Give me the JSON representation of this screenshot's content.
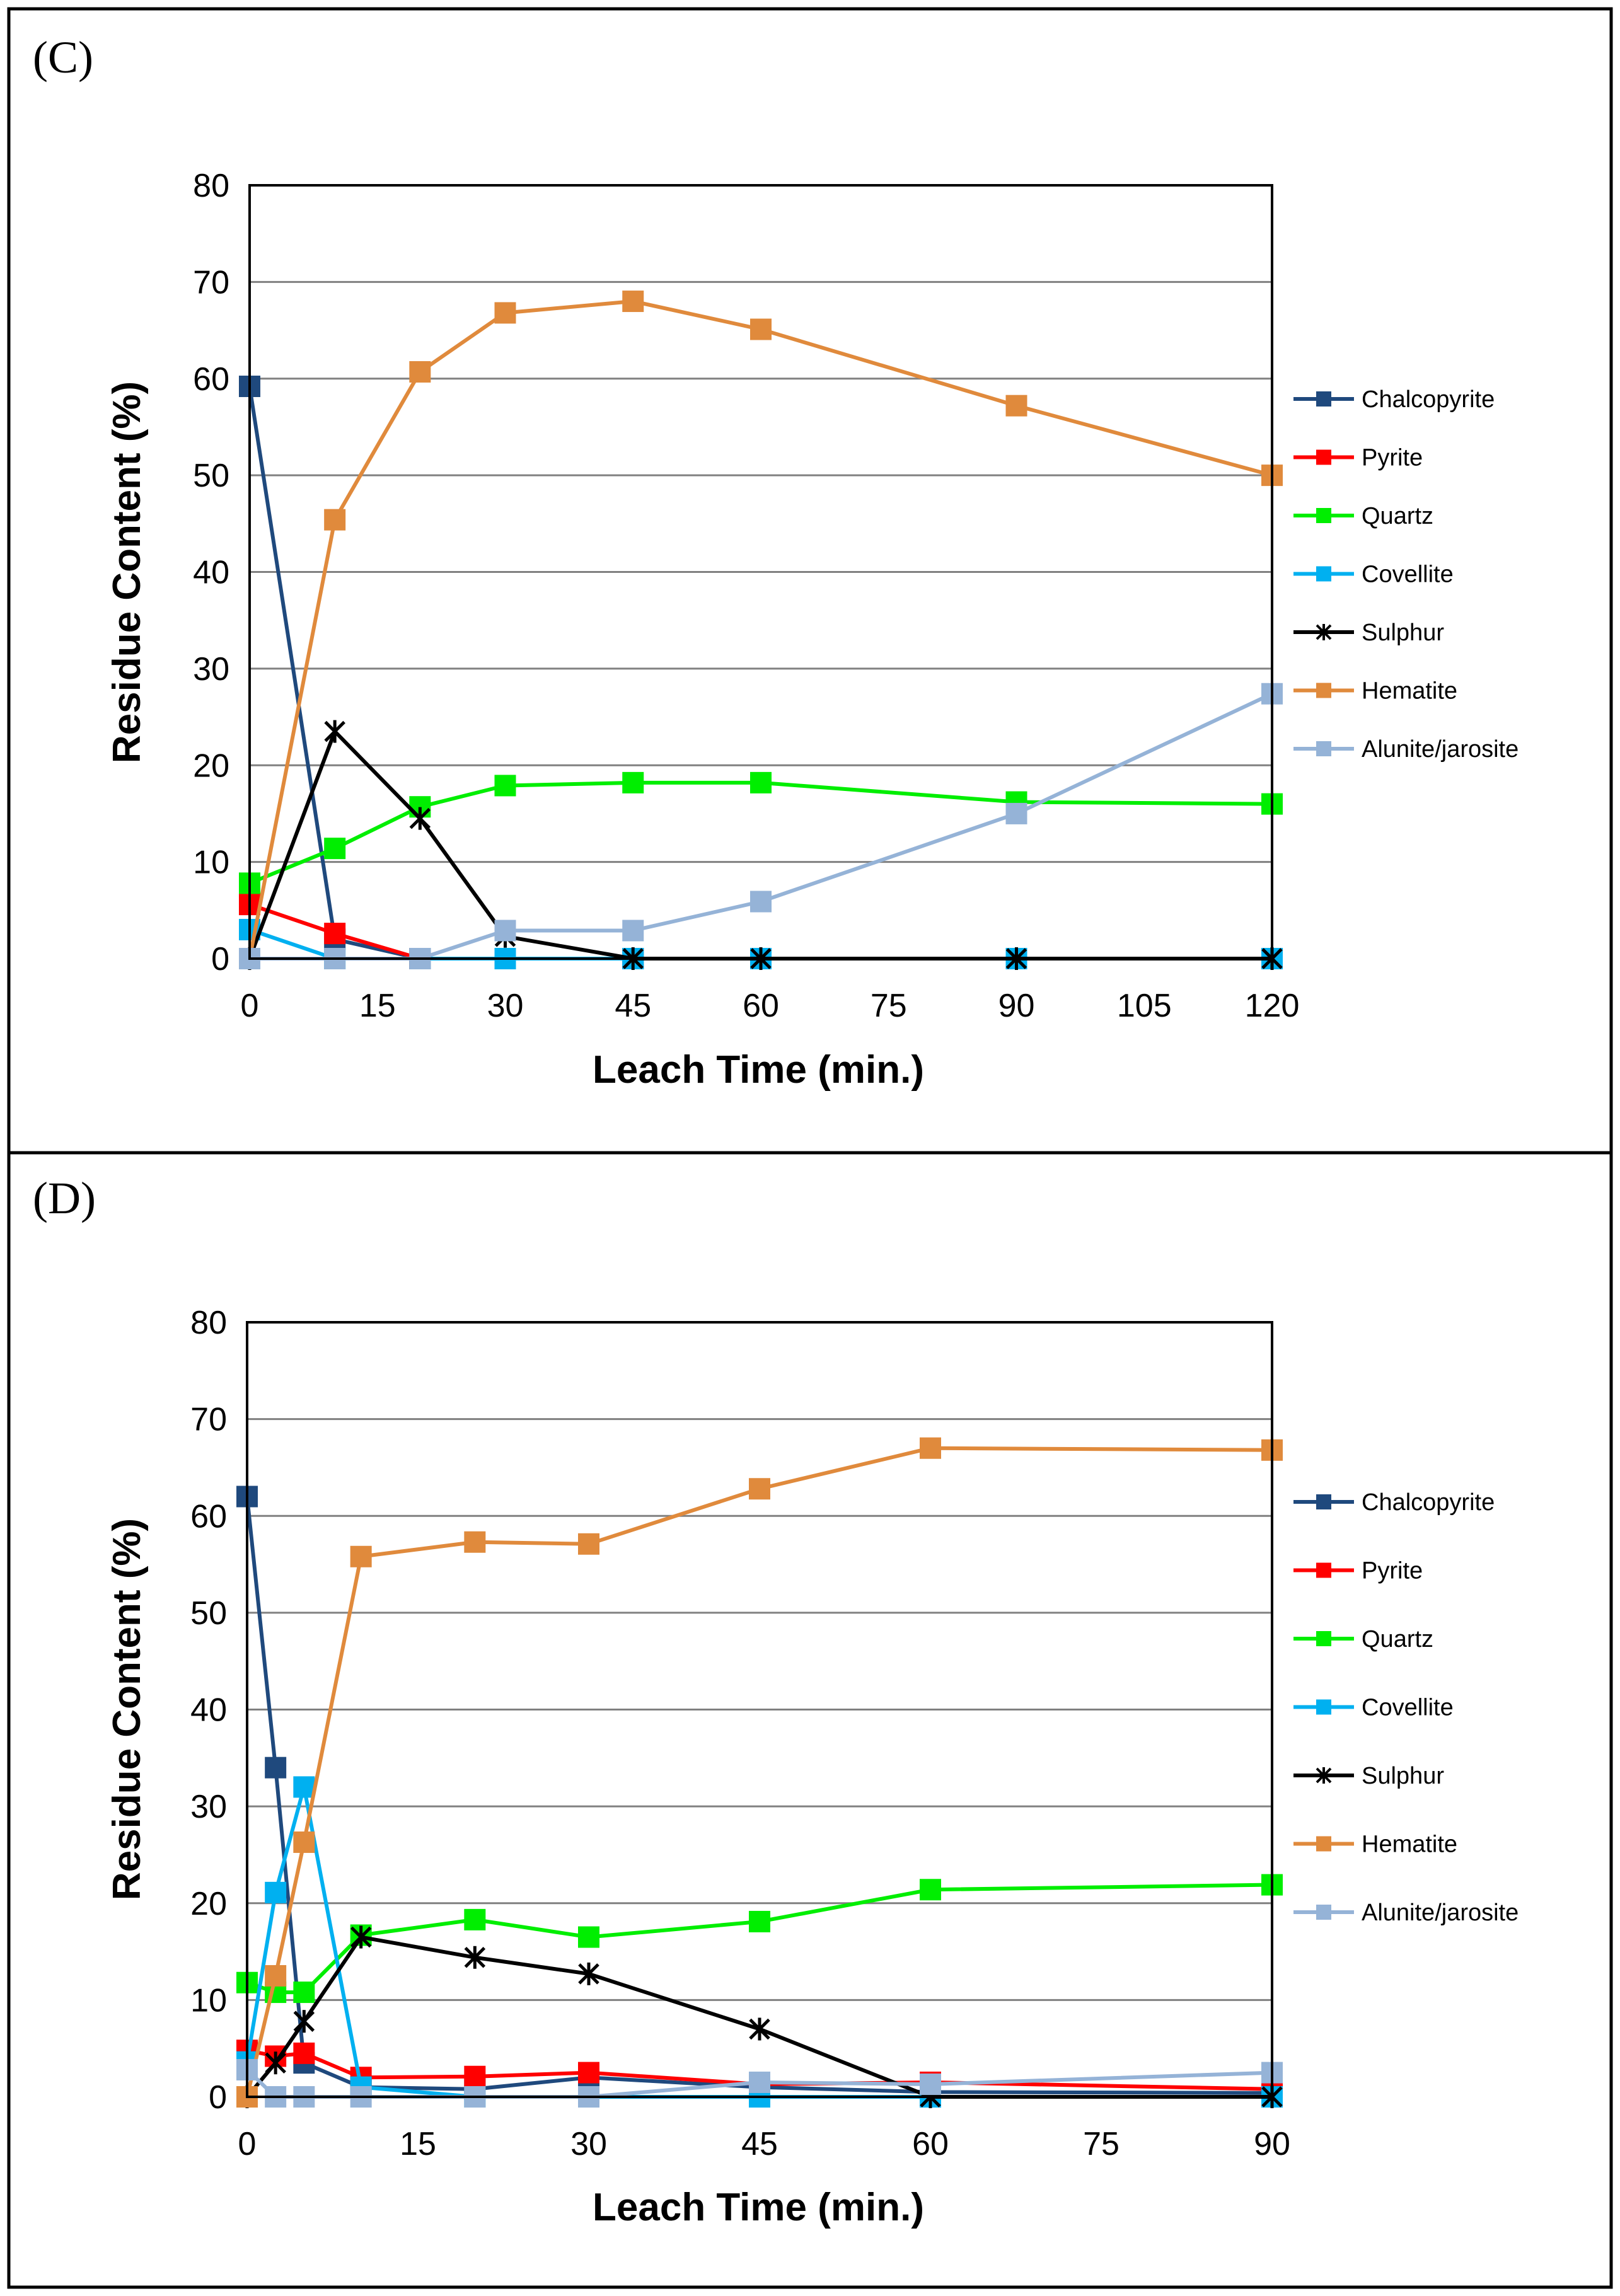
{
  "colors": {
    "Chalcopyrite": "#1f497d",
    "Pyrite": "#ff0000",
    "Quartz": "#00ee00",
    "Covellite": "#00b0f0",
    "Sulphur": "#000000",
    "Hematite": "#e08a3c",
    "Alunite/jarosite": "#95b3d7"
  },
  "chart_data": [
    {
      "panel_label": "(C)",
      "type": "line",
      "xlabel": "Leach Time (min.)",
      "ylabel": "Residue Content (%)",
      "xlim": [
        0,
        120
      ],
      "ylim": [
        0,
        80
      ],
      "x_ticks": [
        "0",
        "15",
        "30",
        "45",
        "60",
        "75",
        "90",
        "105",
        "120"
      ],
      "y_ticks": [
        "0",
        "10",
        "20",
        "30",
        "40",
        "50",
        "60",
        "70",
        "80"
      ],
      "grid": true,
      "legend": "right",
      "series": [
        {
          "name": "Chalcopyrite",
          "marker": "square",
          "x": [
            0,
            10,
            20,
            30,
            45,
            60,
            90,
            120
          ],
          "values": [
            59.2,
            2,
            0,
            0,
            0,
            0,
            0,
            0
          ]
        },
        {
          "name": "Pyrite",
          "marker": "square",
          "x": [
            0,
            10,
            20
          ],
          "values": [
            5.6,
            2.6,
            0
          ]
        },
        {
          "name": "Quartz",
          "marker": "square",
          "x": [
            0,
            10,
            20,
            30,
            45,
            60,
            90,
            120
          ],
          "values": [
            7.8,
            11.4,
            15.7,
            17.9,
            18.2,
            18.2,
            16.2,
            16
          ]
        },
        {
          "name": "Covellite",
          "marker": "square",
          "x": [
            0,
            10,
            20,
            30,
            45,
            60,
            90,
            120
          ],
          "values": [
            3,
            0,
            0,
            0,
            0,
            0,
            0,
            0
          ]
        },
        {
          "name": "Sulphur",
          "marker": "star",
          "x": [
            0,
            10,
            20,
            30,
            45,
            60,
            90,
            120
          ],
          "values": [
            0,
            23.5,
            14.5,
            2.3,
            0,
            0,
            0,
            0
          ]
        },
        {
          "name": "Hematite",
          "marker": "square",
          "x": [
            0,
            10,
            20,
            30,
            45,
            60,
            90,
            120
          ],
          "values": [
            0,
            45.4,
            60.7,
            66.8,
            68,
            65.1,
            57.2,
            50
          ]
        },
        {
          "name": "Alunite/jarosite",
          "marker": "square",
          "x": [
            0,
            10,
            20,
            30,
            45,
            60,
            90,
            120
          ],
          "values": [
            0,
            0,
            0,
            2.9,
            2.9,
            5.9,
            15,
            27.4
          ]
        }
      ]
    },
    {
      "panel_label": "(D)",
      "type": "line",
      "xlabel": "Leach Time (min.)",
      "ylabel": "Residue Content (%)",
      "xlim": [
        0,
        90
      ],
      "ylim": [
        0,
        80
      ],
      "x_ticks": [
        "0",
        "15",
        "30",
        "45",
        "60",
        "75",
        "90"
      ],
      "y_ticks": [
        "0",
        "10",
        "20",
        "30",
        "40",
        "50",
        "60",
        "70",
        "80"
      ],
      "grid": true,
      "legend": "right",
      "series": [
        {
          "name": "Chalcopyrite",
          "marker": "square",
          "x": [
            0,
            2.5,
            5,
            10,
            20,
            30,
            45,
            60,
            90
          ],
          "values": [
            62,
            34,
            3.5,
            1,
            0.8,
            2,
            1,
            0.5,
            0.4
          ]
        },
        {
          "name": "Pyrite",
          "marker": "square",
          "x": [
            0,
            2.5,
            5,
            10,
            20,
            30,
            45,
            60,
            90
          ],
          "values": [
            4.8,
            4.2,
            4.5,
            2,
            2.1,
            2.5,
            1.3,
            1.5,
            0.8
          ]
        },
        {
          "name": "Quartz",
          "marker": "square",
          "x": [
            0,
            2.5,
            5,
            10,
            20,
            30,
            45,
            60,
            90
          ],
          "values": [
            11.8,
            10.8,
            10.8,
            16.7,
            18.3,
            16.5,
            18.1,
            21.4,
            21.9
          ]
        },
        {
          "name": "Covellite",
          "marker": "square",
          "x": [
            0,
            2.5,
            5,
            10,
            20,
            30,
            45,
            60,
            90
          ],
          "values": [
            3.6,
            21.1,
            32,
            1,
            0,
            0,
            0,
            0,
            0
          ]
        },
        {
          "name": "Sulphur",
          "marker": "star",
          "x": [
            0,
            2.5,
            5,
            10,
            20,
            30,
            45,
            60,
            90
          ],
          "values": [
            0,
            3.5,
            7.8,
            16.5,
            14.4,
            12.7,
            7,
            0,
            0
          ]
        },
        {
          "name": "Hematite",
          "marker": "square",
          "x": [
            0,
            2.5,
            5,
            10,
            20,
            30,
            45,
            60,
            90
          ],
          "values": [
            0,
            12.5,
            26.3,
            55.8,
            57.3,
            57.1,
            62.8,
            67,
            66.8
          ]
        },
        {
          "name": "Alunite/jarosite",
          "marker": "square",
          "x": [
            0,
            2.5,
            5,
            10,
            20,
            30,
            45,
            60,
            90
          ],
          "values": [
            2.8,
            0,
            0,
            0,
            0,
            0,
            1.5,
            1.3,
            2.5
          ]
        }
      ]
    }
  ]
}
